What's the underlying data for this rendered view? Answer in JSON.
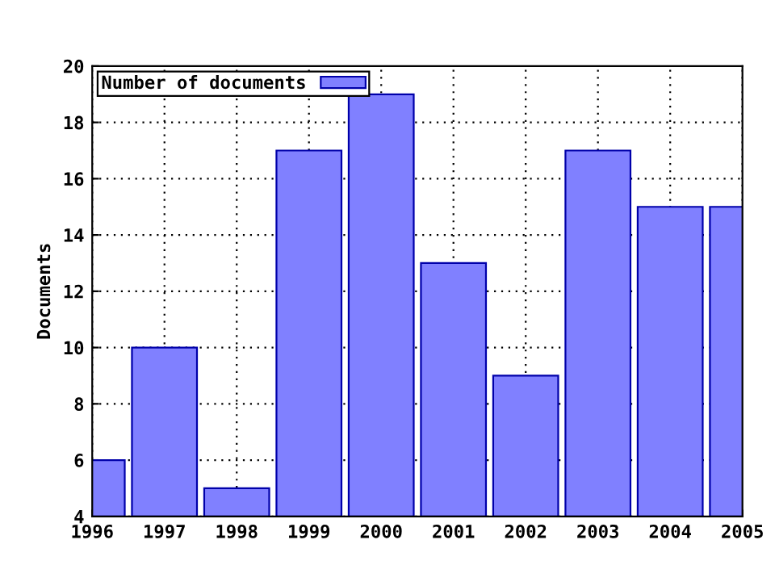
{
  "chart_data": {
    "type": "bar",
    "ylabel": "Documents",
    "x": [
      1996,
      1997,
      1998,
      1999,
      2000,
      2001,
      2002,
      2003,
      2004,
      2005
    ],
    "series": [
      {
        "name": "Number of documents",
        "color": "#8080ff",
        "values": [
          6,
          10,
          5,
          17,
          19,
          13,
          9,
          17,
          15,
          15
        ]
      }
    ],
    "xlim": [
      1996,
      2005
    ],
    "xticks": [
      1996,
      1997,
      1998,
      1999,
      2000,
      2001,
      2002,
      2003,
      2004,
      2005
    ],
    "ylim": [
      4,
      20
    ],
    "yticks": [
      4,
      6,
      8,
      10,
      12,
      14,
      16,
      18,
      20
    ],
    "grid": true,
    "legend": "top left"
  }
}
